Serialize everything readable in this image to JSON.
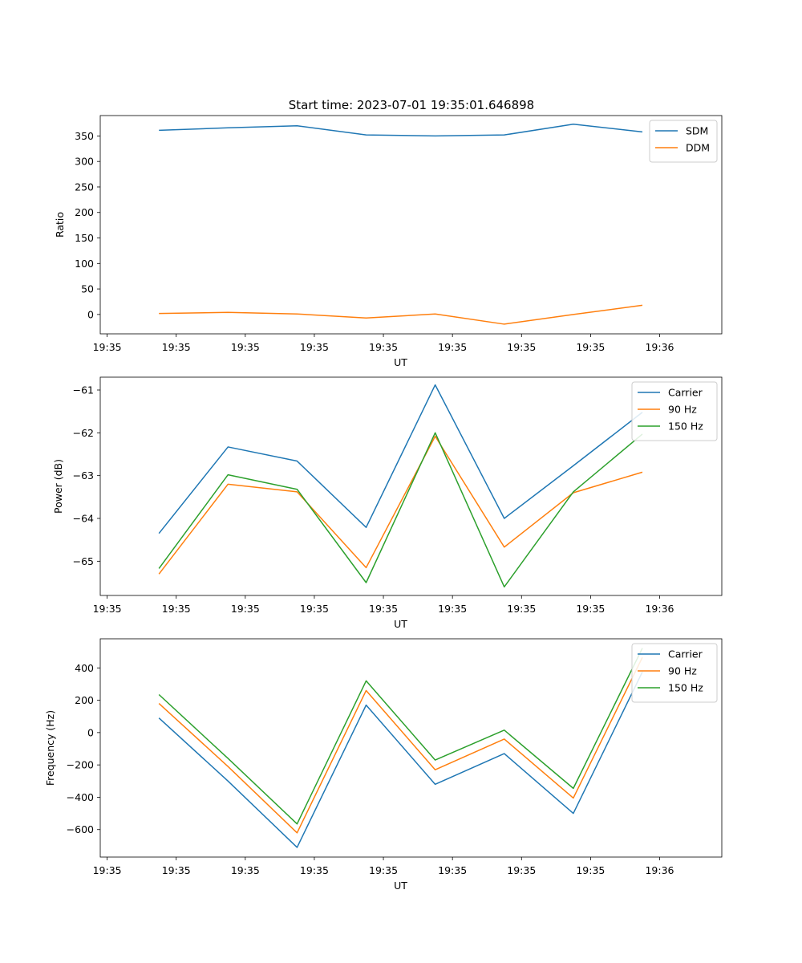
{
  "figure": {
    "title": "Start time: 2023-07-01 19:35:01.646898"
  },
  "chart_data": [
    {
      "type": "line",
      "title": "Start time: 2023-07-01 19:35:01.646898",
      "xlabel": "UT",
      "ylabel": "Ratio",
      "xlim": [
        0,
        9
      ],
      "ylim": [
        -38,
        390
      ],
      "x_ticks": [
        0.1,
        1.1,
        2.1,
        3.1,
        4.1,
        5.1,
        6.1,
        7.1,
        8.1
      ],
      "x_tick_labels": [
        "19:35",
        "19:35",
        "19:35",
        "19:35",
        "19:35",
        "19:35",
        "19:35",
        "19:35",
        "19:36"
      ],
      "y_ticks": [
        0,
        50,
        100,
        150,
        200,
        250,
        300,
        350
      ],
      "y_tick_labels": [
        "0",
        "50",
        "100",
        "150",
        "200",
        "250",
        "300",
        "350"
      ],
      "x": [
        0.85,
        1.85,
        2.85,
        3.85,
        4.85,
        5.85,
        6.85,
        7.85
      ],
      "legend_position": "upper-right",
      "series": [
        {
          "name": "SDM",
          "color": "#1f77b4",
          "values": [
            361,
            366,
            370,
            352,
            350,
            352,
            373,
            358
          ]
        },
        {
          "name": "DDM",
          "color": "#ff7f0e",
          "values": [
            2,
            4,
            1,
            -7,
            1,
            -19,
            0,
            18
          ]
        }
      ]
    },
    {
      "type": "line",
      "title": "",
      "xlabel": "UT",
      "ylabel": "Power (dB)",
      "xlim": [
        0,
        9
      ],
      "ylim": [
        -65.8,
        -60.7
      ],
      "x_ticks": [
        0.1,
        1.1,
        2.1,
        3.1,
        4.1,
        5.1,
        6.1,
        7.1,
        8.1
      ],
      "x_tick_labels": [
        "19:35",
        "19:35",
        "19:35",
        "19:35",
        "19:35",
        "19:35",
        "19:35",
        "19:35",
        "19:36"
      ],
      "y_ticks": [
        -65,
        -64,
        -63,
        -62,
        -61
      ],
      "y_tick_labels": [
        "−65",
        "−64",
        "−63",
        "−62",
        "−61"
      ],
      "x": [
        0.85,
        1.85,
        2.85,
        3.85,
        4.85,
        5.85,
        6.85,
        7.85
      ],
      "legend_position": "upper-right",
      "series": [
        {
          "name": "Carrier",
          "color": "#1f77b4",
          "values": [
            -64.35,
            -62.33,
            -62.66,
            -64.21,
            -60.88,
            -64.0,
            -62.77,
            -61.52
          ]
        },
        {
          "name": "90 Hz",
          "color": "#ff7f0e",
          "values": [
            -65.3,
            -63.2,
            -63.38,
            -65.15,
            -62.08,
            -64.67,
            -63.4,
            -62.92
          ]
        },
        {
          "name": "150 Hz",
          "color": "#2ca02c",
          "values": [
            -65.17,
            -62.98,
            -63.32,
            -65.5,
            -62.0,
            -65.6,
            -63.38,
            -62.03
          ]
        }
      ]
    },
    {
      "type": "line",
      "title": "",
      "xlabel": "UT",
      "ylabel": "Frequency (Hz)",
      "xlim": [
        0,
        9
      ],
      "ylim": [
        -770,
        580
      ],
      "x_ticks": [
        0.1,
        1.1,
        2.1,
        3.1,
        4.1,
        5.1,
        6.1,
        7.1,
        8.1
      ],
      "x_tick_labels": [
        "19:35",
        "19:35",
        "19:35",
        "19:35",
        "19:35",
        "19:35",
        "19:35",
        "19:35",
        "19:36"
      ],
      "y_ticks": [
        -600,
        -400,
        -200,
        0,
        200,
        400
      ],
      "y_tick_labels": [
        "−600",
        "−400",
        "−200",
        "0",
        "200",
        "400"
      ],
      "x": [
        0.85,
        1.85,
        2.85,
        3.85,
        4.85,
        5.85,
        6.85,
        7.85
      ],
      "legend_position": "upper-right",
      "series": [
        {
          "name": "Carrier",
          "color": "#1f77b4",
          "values": [
            90,
            -300,
            -710,
            170,
            -320,
            -130,
            -500,
            375
          ]
        },
        {
          "name": "90 Hz",
          "color": "#ff7f0e",
          "values": [
            180,
            -210,
            -620,
            260,
            -230,
            -40,
            -405,
            465
          ]
        },
        {
          "name": "150 Hz",
          "color": "#2ca02c",
          "values": [
            235,
            -160,
            -565,
            320,
            -170,
            15,
            -345,
            522
          ]
        }
      ]
    }
  ]
}
